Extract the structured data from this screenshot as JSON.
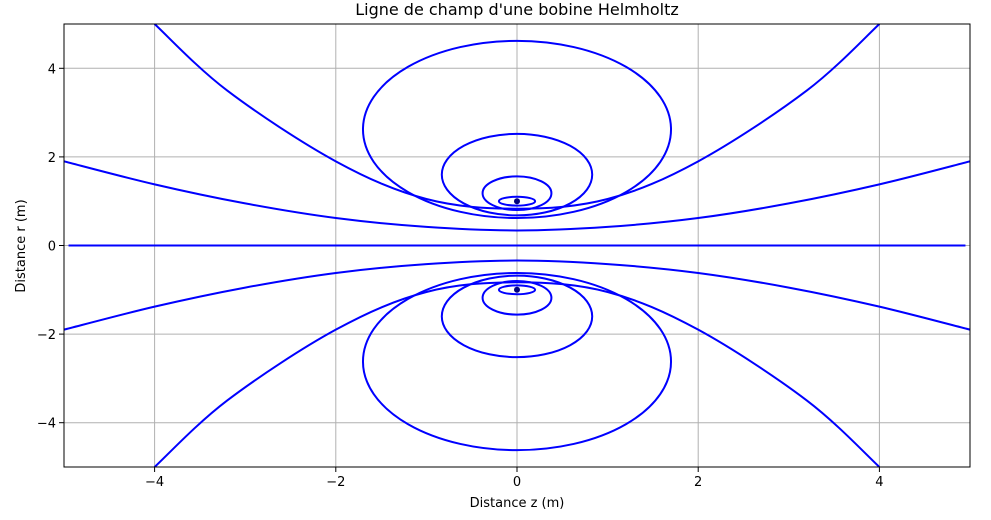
{
  "chart_data": {
    "type": "line",
    "title": "Ligne de champ d'une bobine Helmholtz",
    "xlabel": "Distance z (m)",
    "ylabel": "Distance r (m)",
    "xlim": [
      -5,
      5
    ],
    "ylim": [
      -5,
      5
    ],
    "x_ticks": [
      -4,
      -2,
      0,
      2,
      4
    ],
    "y_ticks": [
      -4,
      -2,
      0,
      2,
      4
    ],
    "x_tick_labels": [
      "−4",
      "−2",
      "0",
      "2",
      "4"
    ],
    "y_tick_labels": [
      "−4",
      "−2",
      "0",
      "2",
      "4"
    ],
    "grid": true,
    "line_color": "#0000ff",
    "series": [
      {
        "kind": "axis-line",
        "points": [
          [
            -4.95,
            0
          ],
          [
            4.95,
            0
          ]
        ]
      },
      {
        "kind": "closed-loop",
        "center": [
          0,
          1.0
        ],
        "rz": 0.2,
        "rr": 0.1
      },
      {
        "kind": "closed-loop",
        "center": [
          0,
          1.18
        ],
        "rz": 0.38,
        "rr": 0.38
      },
      {
        "kind": "closed-loop",
        "center": [
          0,
          1.6
        ],
        "rz": 0.83,
        "rr": 0.92
      },
      {
        "kind": "closed-loop",
        "center": [
          0,
          2.62
        ],
        "rz": 1.7,
        "rr": 2.0
      },
      {
        "kind": "closed-loop",
        "center": [
          0,
          -1.0
        ],
        "rz": 0.2,
        "rr": 0.1
      },
      {
        "kind": "closed-loop",
        "center": [
          0,
          -1.18
        ],
        "rz": 0.38,
        "rr": 0.38
      },
      {
        "kind": "closed-loop",
        "center": [
          0,
          -1.6
        ],
        "rz": 0.83,
        "rr": 0.92
      },
      {
        "kind": "closed-loop",
        "center": [
          0,
          -2.62
        ],
        "rz": 1.7,
        "rr": 2.0
      },
      {
        "kind": "open-curve",
        "points": [
          [
            -4.0,
            5.0
          ],
          [
            -3.2,
            3.5
          ],
          [
            -2.0,
            1.9
          ],
          [
            -1.0,
            1.05
          ],
          [
            0,
            0.83
          ],
          [
            1.0,
            1.05
          ],
          [
            2.0,
            1.9
          ],
          [
            3.2,
            3.5
          ],
          [
            4.0,
            5.0
          ]
        ]
      },
      {
        "kind": "open-curve",
        "points": [
          [
            -4.0,
            -5.0
          ],
          [
            -3.2,
            -3.5
          ],
          [
            -2.0,
            -1.9
          ],
          [
            -1.0,
            -1.05
          ],
          [
            0,
            -0.83
          ],
          [
            1.0,
            -1.05
          ],
          [
            2.0,
            -1.9
          ],
          [
            3.2,
            -3.5
          ],
          [
            4.0,
            -5.0
          ]
        ]
      },
      {
        "kind": "open-curve",
        "points": [
          [
            -5.0,
            1.9
          ],
          [
            -4.0,
            1.38
          ],
          [
            -3.0,
            0.95
          ],
          [
            -2.0,
            0.62
          ],
          [
            -1.0,
            0.42
          ],
          [
            0,
            0.34
          ],
          [
            1.0,
            0.42
          ],
          [
            2.0,
            0.62
          ],
          [
            3.0,
            0.95
          ],
          [
            4.0,
            1.38
          ],
          [
            5.0,
            1.9
          ]
        ]
      },
      {
        "kind": "open-curve",
        "points": [
          [
            -5.0,
            -1.9
          ],
          [
            -4.0,
            -1.38
          ],
          [
            -3.0,
            -0.95
          ],
          [
            -2.0,
            -0.62
          ],
          [
            -1.0,
            -0.42
          ],
          [
            0,
            -0.34
          ],
          [
            1.0,
            -0.42
          ],
          [
            2.0,
            -0.62
          ],
          [
            3.0,
            -0.95
          ],
          [
            4.0,
            -1.38
          ],
          [
            5.0,
            -1.9
          ]
        ]
      }
    ]
  }
}
